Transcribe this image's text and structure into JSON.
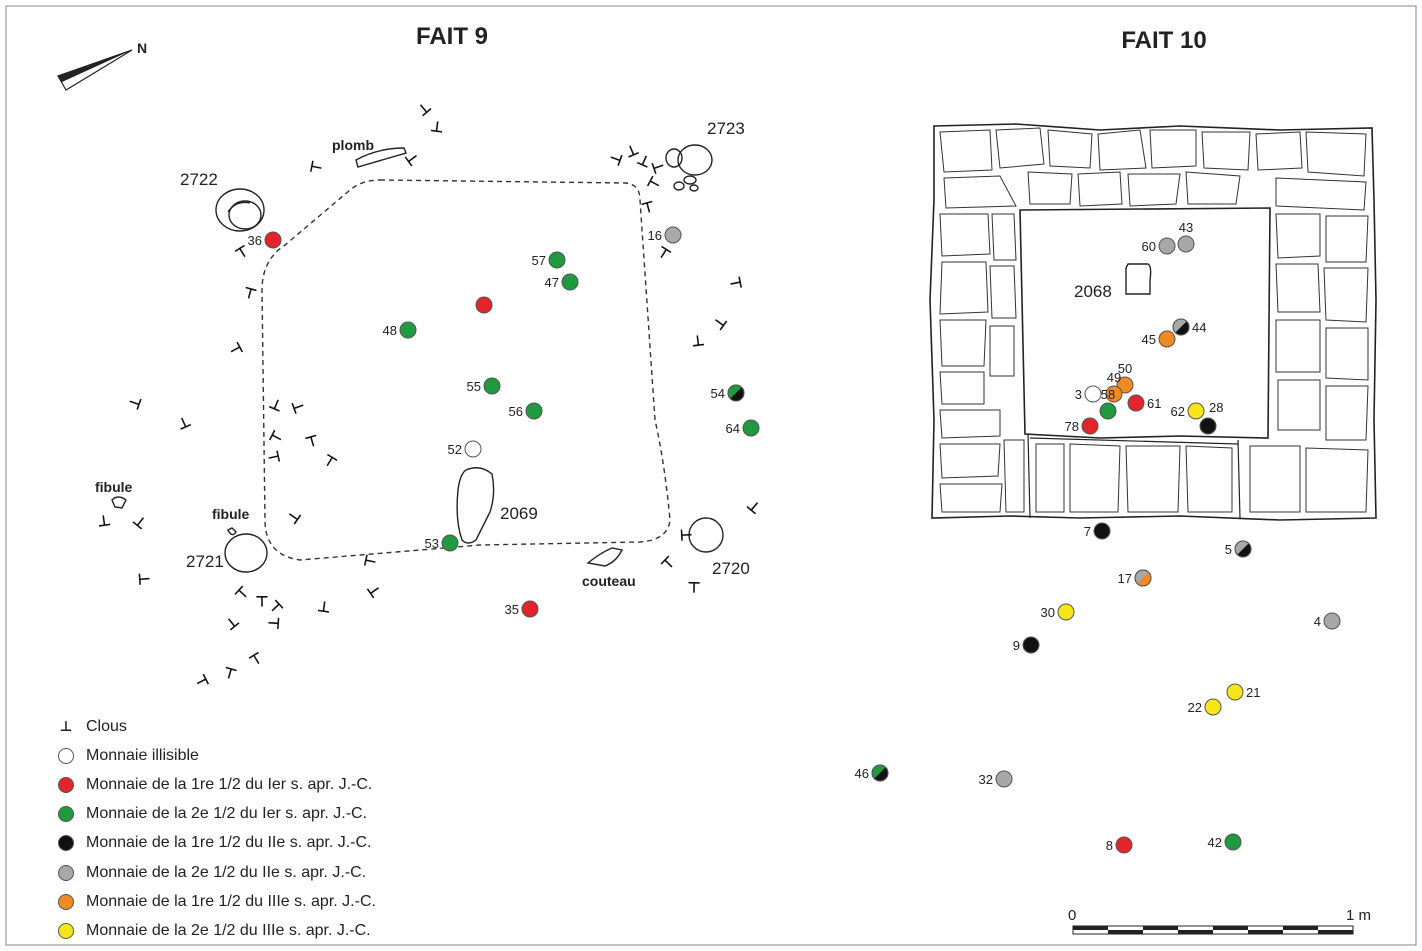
{
  "titles": {
    "left": "FAIT 9",
    "right": "FAIT 10"
  },
  "north_label": "N",
  "features": {
    "f2722": "2722",
    "f2723": "2723",
    "f2721": "2721",
    "f2720": "2720",
    "f2069": "2069",
    "f2068": "2068"
  },
  "objects": {
    "plomb": "plomb",
    "fibule_a": "fibule",
    "fibule_b": "fibule",
    "couteau": "couteau"
  },
  "scale": {
    "start": "0",
    "end": "1 m"
  },
  "colors": {
    "illisible": "#ffffff",
    "c1_1": "#e3242b",
    "c1_2": "#1f9a3e",
    "c2_1": "#111111",
    "c2_2": "#a8a8a8",
    "c3_1": "#f08a24",
    "c3_2": "#f7e617"
  },
  "legend": {
    "clous": "Clous",
    "items": [
      {
        "key": "illisible",
        "label": "Monnaie illisible"
      },
      {
        "key": "c1_1",
        "label": "Monnaie de la 1re 1/2 du Ier s. apr. J.-C."
      },
      {
        "key": "c1_2",
        "label": "Monnaie de la 2e 1/2 du Ier s. apr. J.-C."
      },
      {
        "key": "c2_1",
        "label": "Monnaie de la 1re 1/2 du IIe s. apr. J.-C."
      },
      {
        "key": "c2_2",
        "label": "Monnaie de la 2e 1/2 du IIe s. apr. J.-C."
      },
      {
        "key": "c3_1",
        "label": "Monnaie de la 1re 1/2 du IIIe s. apr. J.-C."
      },
      {
        "key": "c3_2",
        "label": "Monnaie de la 2e 1/2 du IIIe s. apr. J.-C."
      }
    ]
  },
  "coins": [
    {
      "num": "36",
      "cat": "c1_1"
    },
    {
      "num": "16",
      "cat": "c2_2"
    },
    {
      "num": "57",
      "cat": "c1_2"
    },
    {
      "num": "47",
      "cat": "c1_2"
    },
    {
      "num": "",
      "cat": "c1_1"
    },
    {
      "num": "48",
      "cat": "c1_2"
    },
    {
      "num": "55",
      "cat": "c1_2"
    },
    {
      "num": "56",
      "cat": "c1_2"
    },
    {
      "num": "54",
      "cat": "c1_2",
      "cat2": "c2_1"
    },
    {
      "num": "64",
      "cat": "c1_2"
    },
    {
      "num": "52",
      "cat": "illisible"
    },
    {
      "num": "53",
      "cat": "c1_2"
    },
    {
      "num": "35",
      "cat": "c1_1"
    },
    {
      "num": "43",
      "cat": "c2_2"
    },
    {
      "num": "60",
      "cat": "c2_2"
    },
    {
      "num": "44",
      "cat": "c2_2",
      "cat2": "c2_1"
    },
    {
      "num": "45",
      "cat": "c3_1"
    },
    {
      "num": "50",
      "cat": "c3_1"
    },
    {
      "num": "49",
      "cat": "c3_1"
    },
    {
      "num": "3",
      "cat": "illisible"
    },
    {
      "num": "61",
      "cat": "c1_1"
    },
    {
      "num": "58",
      "cat": "c1_2"
    },
    {
      "num": "78",
      "cat": "c1_1"
    },
    {
      "num": "62",
      "cat": "c3_2"
    },
    {
      "num": "28",
      "cat": "c2_1"
    },
    {
      "num": "7",
      "cat": "c2_1"
    },
    {
      "num": "5",
      "cat": "c2_2",
      "cat2": "c2_1"
    },
    {
      "num": "17",
      "cat": "c2_2",
      "cat2": "c3_1"
    },
    {
      "num": "30",
      "cat": "c3_2"
    },
    {
      "num": "4",
      "cat": "c2_2"
    },
    {
      "num": "9",
      "cat": "c2_1"
    },
    {
      "num": "21",
      "cat": "c3_2"
    },
    {
      "num": "22",
      "cat": "c3_2"
    },
    {
      "num": "46",
      "cat": "c1_2",
      "cat2": "c2_1"
    },
    {
      "num": "32",
      "cat": "c2_2"
    },
    {
      "num": "8",
      "cat": "c1_1"
    },
    {
      "num": "42",
      "cat": "c1_2"
    }
  ]
}
